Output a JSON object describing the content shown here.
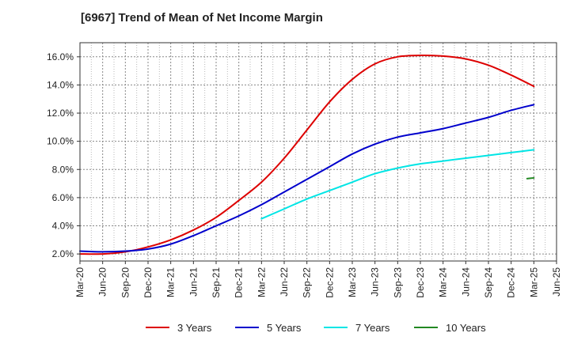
{
  "chart_data": {
    "type": "line",
    "title": "[6967]  Trend of Mean of Net Income Margin",
    "xlabel": "",
    "ylabel": "",
    "x_ticks": [
      "Mar-20",
      "Jun-20",
      "Sep-20",
      "Dec-20",
      "Mar-21",
      "Jun-21",
      "Sep-21",
      "Dec-21",
      "Mar-22",
      "Jun-22",
      "Sep-22",
      "Dec-22",
      "Mar-23",
      "Jun-23",
      "Sep-23",
      "Dec-23",
      "Mar-24",
      "Jun-24",
      "Sep-24",
      "Dec-24",
      "Mar-25",
      "Jun-25"
    ],
    "y_ticks": [
      "2.0%",
      "4.0%",
      "6.0%",
      "8.0%",
      "10.0%",
      "12.0%",
      "14.0%",
      "16.0%"
    ],
    "y_tick_values": [
      2,
      4,
      6,
      8,
      10,
      12,
      14,
      16
    ],
    "ylim": [
      1.5,
      17.0
    ],
    "grid": true,
    "legend_position": "bottom",
    "series": [
      {
        "name": "3 Years",
        "color": "#dd0000",
        "x": [
          "Mar-20",
          "Jun-20",
          "Sep-20",
          "Dec-20",
          "Mar-21",
          "Jun-21",
          "Sep-21",
          "Dec-21",
          "Mar-22",
          "Jun-22",
          "Sep-22",
          "Dec-22",
          "Mar-23",
          "Jun-23",
          "Sep-23",
          "Dec-23",
          "Mar-24",
          "Jun-24",
          "Sep-24",
          "Dec-24",
          "Mar-25"
        ],
        "values": [
          2.0,
          2.0,
          2.15,
          2.5,
          3.0,
          3.7,
          4.6,
          5.8,
          7.1,
          8.8,
          10.8,
          12.8,
          14.4,
          15.5,
          16.0,
          16.1,
          16.05,
          15.85,
          15.4,
          14.7,
          13.9
        ]
      },
      {
        "name": "5 Years",
        "color": "#0000cc",
        "x": [
          "Mar-20",
          "Jun-20",
          "Sep-20",
          "Dec-20",
          "Mar-21",
          "Jun-21",
          "Sep-21",
          "Dec-21",
          "Mar-22",
          "Jun-22",
          "Sep-22",
          "Dec-22",
          "Mar-23",
          "Jun-23",
          "Sep-23",
          "Dec-23",
          "Mar-24",
          "Jun-24",
          "Sep-24",
          "Dec-24",
          "Mar-25"
        ],
        "values": [
          2.2,
          2.15,
          2.2,
          2.35,
          2.7,
          3.3,
          4.0,
          4.7,
          5.5,
          6.4,
          7.3,
          8.2,
          9.1,
          9.8,
          10.3,
          10.6,
          10.9,
          11.3,
          11.7,
          12.2,
          12.6
        ]
      },
      {
        "name": "7 Years",
        "color": "#00e5e5",
        "x": [
          "Mar-22",
          "Jun-22",
          "Sep-22",
          "Dec-22",
          "Mar-23",
          "Jun-23",
          "Sep-23",
          "Dec-23",
          "Mar-24",
          "Jun-24",
          "Sep-24",
          "Dec-24",
          "Mar-25"
        ],
        "values": [
          4.5,
          5.2,
          5.9,
          6.5,
          7.1,
          7.7,
          8.1,
          8.4,
          8.6,
          8.8,
          9.0,
          9.2,
          9.4
        ]
      },
      {
        "name": "10 Years",
        "color": "#228822",
        "x": [
          "Dec-24",
          "Mar-25"
        ],
        "values": [
          7.35,
          7.4
        ],
        "x_offsets": [
          0.7,
          1.0
        ]
      }
    ]
  }
}
